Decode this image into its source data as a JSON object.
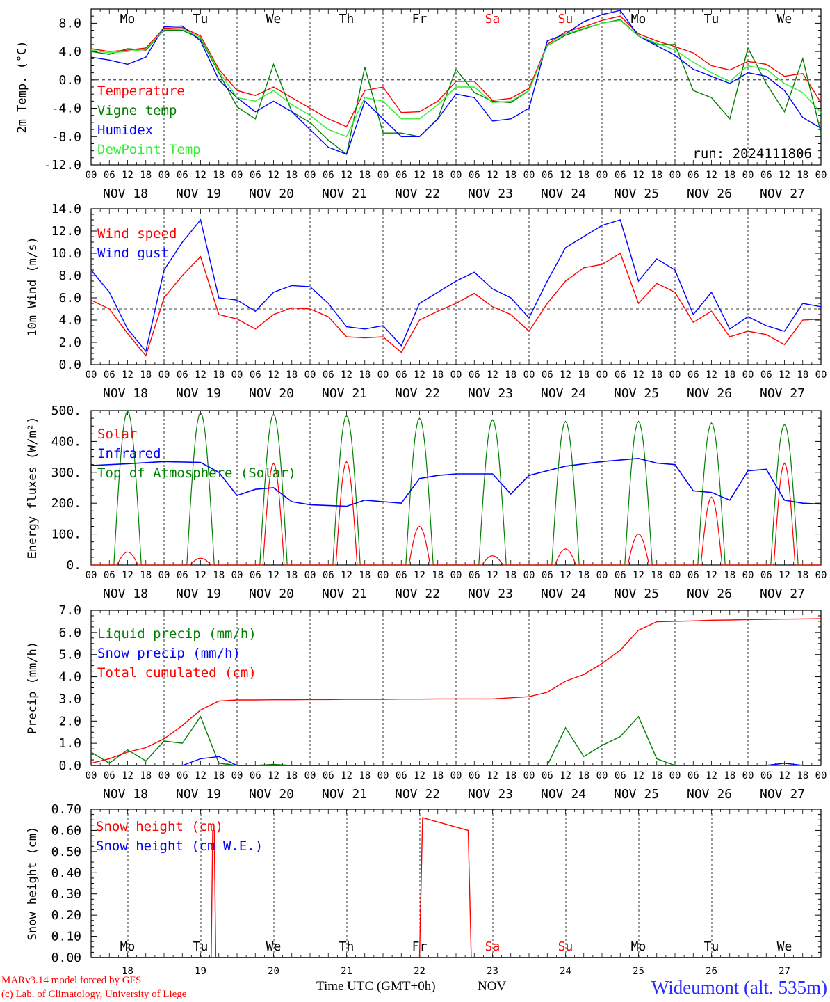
{
  "meta": {
    "run_label": "run: 2024111806",
    "station": "Wideumont (alt. 535m)",
    "model_line": "MARv3.14 model forced by GFS",
    "lab_line": "(c) Lab. of Climatology, University of Liege",
    "time_axis_title": "Time UTC (GMT+0h)",
    "month_label": "NOV",
    "colors": {
      "red": "#ff0000",
      "green": "#008000",
      "blue": "#0000ff",
      "lightgreen": "#00ee00",
      "weekend": "#ff0000",
      "station": "#2b2bff"
    }
  },
  "days": [
    "Mo",
    "Tu",
    "We",
    "Th",
    "Fr",
    "Sa",
    "Su",
    "Mo",
    "Tu",
    "We"
  ],
  "weekend_days": [
    5,
    6
  ],
  "date_labels": [
    "NOV 18",
    "NOV 19",
    "NOV 20",
    "NOV 21",
    "NOV 22",
    "NOV 23",
    "NOV 24",
    "NOV 25",
    "NOV 26",
    "NOV 27"
  ],
  "day_numbers": [
    "18",
    "19",
    "20",
    "21",
    "22",
    "23",
    "24",
    "25",
    "26",
    "27"
  ],
  "hour_ticks": [
    "00",
    "06",
    "12",
    "18"
  ],
  "chart_data": [
    {
      "type": "line",
      "ylabel": "2m Temp. (°C)",
      "ylim": [
        -12,
        10
      ],
      "yticks": [
        "-12.0",
        "-8.0",
        "-4.0",
        "0.0",
        "4.0",
        "8.0"
      ],
      "ytick_values": [
        -12,
        -8,
        -4,
        0,
        4,
        8
      ],
      "reference_line": 0,
      "x_hours": [
        0,
        6,
        12,
        18,
        24,
        30,
        36,
        42,
        48,
        54,
        60,
        66,
        72,
        78,
        84,
        90,
        96,
        102,
        108,
        114,
        120,
        126,
        132,
        138,
        144,
        150,
        156,
        162,
        168,
        174,
        180,
        186,
        192,
        198,
        204,
        210,
        216,
        222,
        228,
        234,
        240
      ],
      "series": [
        {
          "name": "Temperature",
          "color": "#ff0000",
          "values": [
            4.4,
            4.0,
            4.2,
            4.5,
            7.3,
            7.4,
            6.2,
            1.5,
            -1.5,
            -2.2,
            -1.0,
            -2.5,
            -4.0,
            -5.5,
            -6.6,
            -1.5,
            -1.0,
            -4.6,
            -4.5,
            -3.0,
            -0.2,
            -0.2,
            -2.9,
            -2.6,
            -1.2,
            5.0,
            6.8,
            7.5,
            8.4,
            9.0,
            6.5,
            5.5,
            4.7,
            3.8,
            2.0,
            1.4,
            2.6,
            2.2,
            0.5,
            0.9,
            -3.2
          ]
        },
        {
          "name": "Vigne temp",
          "color": "#008000",
          "values": [
            4.0,
            3.6,
            4.4,
            4.2,
            7.0,
            7.0,
            5.8,
            1.0,
            -3.8,
            -5.5,
            2.2,
            -4.5,
            -6.0,
            -8.5,
            -10.5,
            1.8,
            -7.5,
            -7.5,
            -8.0,
            -5.5,
            1.5,
            -1.8,
            -3.0,
            -3.2,
            -1.5,
            4.8,
            6.3,
            7.2,
            8.0,
            8.5,
            6.2,
            5.0,
            5.0,
            -1.5,
            -2.5,
            -5.5,
            4.5,
            -0.5,
            -4.5,
            3.0,
            -7.5
          ]
        },
        {
          "name": "Humidex",
          "color": "#0000ff",
          "values": [
            3.2,
            2.8,
            2.2,
            3.2,
            7.5,
            7.6,
            5.5,
            0.0,
            -2.5,
            -4.5,
            -3.0,
            -4.5,
            -7.0,
            -9.5,
            -10.5,
            -3.0,
            -5.5,
            -8.0,
            -8.0,
            -5.5,
            -2.0,
            -2.5,
            -5.8,
            -5.5,
            -4.0,
            5.5,
            6.5,
            8.2,
            9.2,
            9.8,
            6.2,
            4.8,
            3.5,
            1.5,
            0.5,
            -0.5,
            1.0,
            0.5,
            -1.5,
            -5.3,
            -6.8
          ]
        },
        {
          "name": "DewPoint Temp",
          "color": "#33ee33",
          "values": [
            4.2,
            3.8,
            4.0,
            4.3,
            7.1,
            7.2,
            6.0,
            1.2,
            -2.5,
            -3.0,
            -1.5,
            -3.5,
            -5.0,
            -7.0,
            -8.0,
            -2.5,
            -3.0,
            -5.5,
            -5.5,
            -3.5,
            -1.0,
            -1.0,
            -3.2,
            -3.0,
            -1.5,
            4.8,
            6.5,
            7.3,
            8.0,
            8.4,
            6.2,
            5.2,
            4.2,
            2.5,
            1.0,
            -0.2,
            2.0,
            1.5,
            -0.5,
            -1.8,
            -4.6
          ]
        }
      ]
    },
    {
      "type": "line",
      "ylabel": "10m Wind (m/s)",
      "ylim": [
        0,
        14
      ],
      "yticks": [
        "0.0",
        "2.0",
        "4.0",
        "6.0",
        "8.0",
        "10.0",
        "12.0",
        "14.0"
      ],
      "ytick_values": [
        0,
        2,
        4,
        6,
        8,
        10,
        12,
        14
      ],
      "reference_line": 5,
      "x_hours": [
        0,
        6,
        12,
        18,
        24,
        30,
        36,
        42,
        48,
        54,
        60,
        66,
        72,
        78,
        84,
        90,
        96,
        102,
        108,
        114,
        120,
        126,
        132,
        138,
        144,
        150,
        156,
        162,
        168,
        174,
        180,
        186,
        192,
        198,
        204,
        210,
        216,
        222,
        228,
        234,
        240
      ],
      "series": [
        {
          "name": "Wind speed",
          "color": "#ff0000",
          "values": [
            5.8,
            5.0,
            2.8,
            0.8,
            6.0,
            8.0,
            9.7,
            4.5,
            4.1,
            3.2,
            4.5,
            5.1,
            5.0,
            4.3,
            2.5,
            2.4,
            2.5,
            1.1,
            4.0,
            4.8,
            5.5,
            6.4,
            5.2,
            4.5,
            3.0,
            5.5,
            7.5,
            8.7,
            9.0,
            10.0,
            5.5,
            7.3,
            6.5,
            3.8,
            4.8,
            2.5,
            3.0,
            2.7,
            1.8,
            4.0,
            4.1
          ]
        },
        {
          "name": "Wind gust",
          "color": "#0000ff",
          "values": [
            8.5,
            6.5,
            3.2,
            1.2,
            8.5,
            11.0,
            13.0,
            6.0,
            5.8,
            4.8,
            6.5,
            7.1,
            7.0,
            5.5,
            3.4,
            3.2,
            3.5,
            1.7,
            5.5,
            6.5,
            7.5,
            8.3,
            6.8,
            6.0,
            4.2,
            7.5,
            10.5,
            11.5,
            12.5,
            13.0,
            7.5,
            9.5,
            8.5,
            4.5,
            6.5,
            3.2,
            4.3,
            3.5,
            3.0,
            5.5,
            5.2
          ]
        }
      ]
    },
    {
      "type": "line",
      "ylabel": "Energy fluxes (W/m²)",
      "ylim": [
        0,
        500
      ],
      "yticks": [
        "0.",
        "100.",
        "200.",
        "300.",
        "400.",
        "500."
      ],
      "ytick_values": [
        0,
        100,
        200,
        300,
        400,
        500
      ],
      "solar_peaks": [
        {
          "name": "Solar",
          "color": "#ff0000",
          "peaks": [
            42,
            22,
            330,
            335,
            125,
            30,
            52,
            100,
            220,
            330
          ]
        },
        {
          "name": "Top of Atmosphere (Solar)",
          "color": "#008000",
          "peaks": [
            498,
            493,
            488,
            483,
            475,
            470,
            465,
            465,
            460,
            455
          ]
        }
      ],
      "infrared": {
        "name": "Infrared",
        "color": "#0000ff",
        "x_hours": [
          0,
          12,
          24,
          36,
          42,
          48,
          54,
          60,
          66,
          72,
          84,
          90,
          96,
          102,
          108,
          114,
          120,
          132,
          138,
          144,
          156,
          168,
          180,
          186,
          192,
          198,
          204,
          210,
          216,
          222,
          228,
          234,
          240
        ],
        "values": [
          322,
          328,
          335,
          332,
          300,
          225,
          245,
          250,
          205,
          195,
          190,
          210,
          205,
          200,
          280,
          290,
          295,
          295,
          230,
          290,
          320,
          335,
          345,
          330,
          325,
          240,
          235,
          210,
          305,
          310,
          210,
          200,
          197
        ]
      }
    },
    {
      "type": "line",
      "ylabel": "Precip (mm/h)",
      "ylim": [
        0,
        7
      ],
      "yticks": [
        "0.0",
        "1.0",
        "2.0",
        "3.0",
        "4.0",
        "5.0",
        "6.0",
        "7.0"
      ],
      "ytick_values": [
        0,
        1,
        2,
        3,
        4,
        5,
        6,
        7
      ],
      "x_hours": [
        0,
        6,
        12,
        18,
        24,
        30,
        36,
        42,
        48,
        54,
        60,
        66,
        72,
        78,
        84,
        90,
        96,
        102,
        108,
        114,
        120,
        126,
        132,
        138,
        144,
        150,
        156,
        162,
        168,
        174,
        180,
        186,
        192,
        198,
        204,
        210,
        216,
        222,
        228,
        234,
        240
      ],
      "series": [
        {
          "name": "Liquid precip (mm/h)",
          "color": "#008000",
          "values": [
            0.6,
            0.1,
            0.7,
            0.2,
            1.1,
            1.0,
            2.2,
            0.1,
            0,
            0,
            0.05,
            0,
            0,
            0,
            0,
            0,
            0,
            0,
            0,
            0,
            0,
            0,
            0,
            0,
            0,
            0,
            1.7,
            0.4,
            0.9,
            1.3,
            2.2,
            0.3,
            0,
            0,
            0,
            0,
            0,
            0,
            0.1,
            0,
            0
          ]
        },
        {
          "name": "Snow precip (mm/h)",
          "color": "#0000ff",
          "values": [
            0,
            0,
            0,
            0,
            0,
            0,
            0.3,
            0.4,
            0,
            0,
            0,
            0,
            0,
            0,
            0,
            0,
            0,
            0,
            0,
            0,
            0,
            0,
            0,
            0,
            0,
            0,
            0,
            0,
            0,
            0,
            0,
            0,
            0,
            0,
            0,
            0,
            0,
            0,
            0.1,
            0,
            0
          ]
        },
        {
          "name": "Total cumulated (cm)",
          "color": "#ff0000",
          "values": [
            0.1,
            0.3,
            0.6,
            0.8,
            1.2,
            1.8,
            2.5,
            2.9,
            2.95,
            2.95,
            2.96,
            2.96,
            2.97,
            2.97,
            2.98,
            2.98,
            2.98,
            2.99,
            2.99,
            3.0,
            3.0,
            3.0,
            3.0,
            3.05,
            3.1,
            3.3,
            3.8,
            4.1,
            4.6,
            5.2,
            6.1,
            6.48,
            6.5,
            6.52,
            6.55,
            6.56,
            6.58,
            6.59,
            6.6,
            6.61,
            6.62
          ]
        }
      ]
    },
    {
      "type": "line",
      "ylabel": "Snow height (cm)",
      "ylim": [
        0,
        0.7
      ],
      "yticks": [
        "0.00",
        "0.10",
        "0.20",
        "0.30",
        "0.40",
        "0.50",
        "0.60",
        "0.70"
      ],
      "ytick_values": [
        0,
        0.1,
        0.2,
        0.3,
        0.4,
        0.5,
        0.6,
        0.7
      ],
      "series": [
        {
          "name": "Snow height (cm)",
          "color": "#ff0000",
          "x_hours": [
            0,
            39.5,
            40,
            40.5,
            41,
            108,
            109,
            114,
            124,
            125,
            240
          ],
          "values": [
            0,
            0,
            0.6,
            0.6,
            0,
            0,
            0.66,
            0.64,
            0.6,
            0,
            0
          ]
        },
        {
          "name": "Snow height (cm W.E.)",
          "color": "#0000ff",
          "x_hours": [
            0,
            240
          ],
          "values": [
            0,
            0
          ]
        }
      ]
    }
  ]
}
